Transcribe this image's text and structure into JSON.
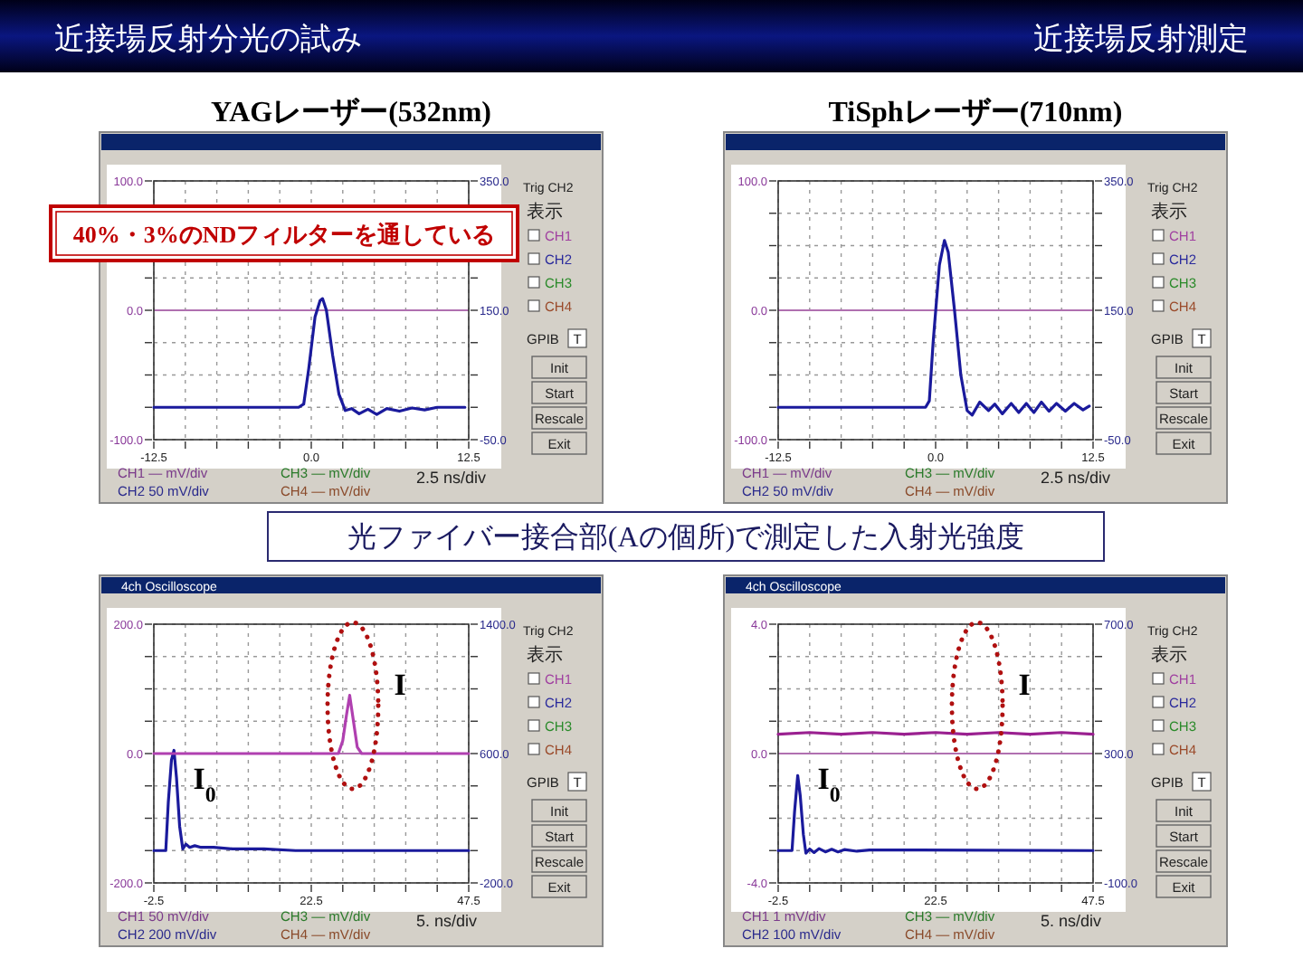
{
  "chart_data": [
    {
      "type": "other",
      "title": "近接場反射分光の試み",
      "annotations": [
        "近接場反射測定",
        "光ファイバー接合部(Aの個所)で測定した入射光強度",
        "40%・3%のNDフィルターを通している"
      ]
    },
    {
      "type": "line",
      "title": "YAGレーザー(532nm)",
      "xlim": [
        -12.5,
        12.5
      ],
      "xticks": [
        {
          "value": -12.5,
          "label": "-12.5"
        },
        {
          "value": -10,
          "label": null
        },
        {
          "value": -7.5,
          "label": null
        },
        {
          "value": -5,
          "label": null
        },
        {
          "value": -2.5,
          "label": null
        },
        {
          "value": 0,
          "label": "0.0"
        },
        {
          "value": 2.5,
          "label": null
        },
        {
          "value": 5,
          "label": null
        },
        {
          "value": 7.5,
          "label": null
        },
        {
          "value": 10,
          "label": null
        },
        {
          "value": 12.5,
          "label": "12.5"
        }
      ],
      "ylim": [
        -100,
        100
      ],
      "yticks": [
        {
          "value": -100,
          "label": "-100.0"
        },
        {
          "value": -75,
          "label": null
        },
        {
          "value": -50,
          "label": null
        },
        {
          "value": -25,
          "label": null
        },
        {
          "value": 0,
          "label": "0.0"
        },
        {
          "value": 25,
          "label": null
        },
        {
          "value": 50,
          "label": null
        },
        {
          "value": 75,
          "label": null
        },
        {
          "value": 100,
          "label": "100.0"
        }
      ],
      "y2lim": [
        -50,
        350
      ],
      "y2ticks": [
        {
          "value": -50,
          "label": "-50.0"
        },
        {
          "value": 0,
          "label": null
        },
        {
          "value": 50,
          "label": null
        },
        {
          "value": 100,
          "label": null
        },
        {
          "value": 150,
          "label": "150.0"
        },
        {
          "value": 200,
          "label": null
        },
        {
          "value": 250,
          "label": null
        },
        {
          "value": 300,
          "label": null
        },
        {
          "value": 350,
          "label": "350.0"
        }
      ],
      "grid": true,
      "ref_lines": [
        {
          "axis": "y",
          "value": 0,
          "color": "#b070b0"
        }
      ],
      "series": [
        {
          "color": "#1a1a9c",
          "axis": "y2",
          "x": [
            -12.5,
            -1,
            -0.6,
            -0.2,
            0.3,
            0.7,
            0.9,
            1.2,
            1.7,
            2.2,
            2.7,
            3.2,
            3.8,
            4.5,
            5.2,
            6,
            7,
            8,
            9,
            10,
            12.2
          ],
          "values": [
            0,
            0,
            5,
            60,
            140,
            165,
            168,
            150,
            80,
            20,
            -5,
            -2,
            -10,
            -3,
            -11,
            -2,
            -6,
            -1,
            -4,
            0,
            0
          ]
        }
      ],
      "annotations": [
        "Trig CH2",
        "表示",
        "CH1",
        "CH2",
        "CH3",
        "CH4",
        "GPIB",
        "T",
        "Init",
        "Start",
        "Rescale",
        "Exit",
        "CH1 — mV/div",
        "CH2 50 mV/div",
        "CH3 — mV/div",
        "CH4 — mV/div",
        "2.5 ns/div"
      ]
    },
    {
      "type": "line",
      "title": "TiSphレーザー(710nm)",
      "xlim": [
        -12.5,
        12.5
      ],
      "xticks": [
        {
          "value": -12.5,
          "label": "-12.5"
        },
        {
          "value": -10,
          "label": null
        },
        {
          "value": -7.5,
          "label": null
        },
        {
          "value": -5,
          "label": null
        },
        {
          "value": -2.5,
          "label": null
        },
        {
          "value": 0,
          "label": "0.0"
        },
        {
          "value": 2.5,
          "label": null
        },
        {
          "value": 5,
          "label": null
        },
        {
          "value": 7.5,
          "label": null
        },
        {
          "value": 10,
          "label": null
        },
        {
          "value": 12.5,
          "label": "12.5"
        }
      ],
      "ylim": [
        -100,
        100
      ],
      "yticks": [
        {
          "value": -100,
          "label": "-100.0"
        },
        {
          "value": -75,
          "label": null
        },
        {
          "value": -50,
          "label": null
        },
        {
          "value": -25,
          "label": null
        },
        {
          "value": 0,
          "label": "0.0"
        },
        {
          "value": 25,
          "label": null
        },
        {
          "value": 50,
          "label": null
        },
        {
          "value": 75,
          "label": null
        },
        {
          "value": 100,
          "label": "100.0"
        }
      ],
      "y2lim": [
        -50,
        350
      ],
      "y2ticks": [
        {
          "value": -50,
          "label": "-50.0"
        },
        {
          "value": 0,
          "label": null
        },
        {
          "value": 50,
          "label": null
        },
        {
          "value": 100,
          "label": null
        },
        {
          "value": 150,
          "label": "150.0"
        },
        {
          "value": 200,
          "label": null
        },
        {
          "value": 250,
          "label": null
        },
        {
          "value": 300,
          "label": null
        },
        {
          "value": 350,
          "label": "350.0"
        }
      ],
      "grid": true,
      "ref_lines": [
        {
          "axis": "y",
          "value": 0,
          "color": "#b070b0"
        }
      ],
      "series": [
        {
          "color": "#1a1a9c",
          "axis": "y2",
          "x": [
            -12.5,
            -0.8,
            -0.5,
            -0.2,
            0.3,
            0.7,
            1,
            1.5,
            2,
            2.5,
            2.9,
            3.5,
            4.2,
            4.7,
            5.3,
            6,
            6.6,
            7.2,
            7.8,
            8.4,
            9,
            9.6,
            10.3,
            11,
            11.7,
            12.2
          ],
          "values": [
            0,
            0,
            10,
            100,
            220,
            258,
            240,
            150,
            50,
            -5,
            -12,
            8,
            -5,
            5,
            -10,
            6,
            -8,
            6,
            -8,
            8,
            -6,
            6,
            -6,
            6,
            -4,
            2
          ]
        }
      ],
      "annotations": [
        "Trig CH2",
        "表示",
        "CH1",
        "CH2",
        "CH3",
        "CH4",
        "GPIB",
        "T",
        "Init",
        "Start",
        "Rescale",
        "Exit",
        "CH1 — mV/div",
        "CH2 50 mV/div",
        "CH3 — mV/div",
        "CH4 — mV/div",
        "2.5 ns/div"
      ]
    },
    {
      "type": "line",
      "subtitle": "4ch Oscilloscope",
      "xlim": [
        -2.5,
        47.5
      ],
      "xticks": [
        {
          "value": -2.5,
          "label": "-2.5"
        },
        {
          "value": 2.5,
          "label": null
        },
        {
          "value": 7.5,
          "label": null
        },
        {
          "value": 12.5,
          "label": null
        },
        {
          "value": 17.5,
          "label": null
        },
        {
          "value": 22.5,
          "label": "22.5"
        },
        {
          "value": 27.5,
          "label": null
        },
        {
          "value": 32.5,
          "label": null
        },
        {
          "value": 37.5,
          "label": null
        },
        {
          "value": 42.5,
          "label": null
        },
        {
          "value": 47.5,
          "label": "47.5"
        }
      ],
      "ylim": [
        -200,
        200
      ],
      "yticks": [
        {
          "value": -200,
          "label": "-200.0"
        },
        {
          "value": -150,
          "label": null
        },
        {
          "value": -100,
          "label": null
        },
        {
          "value": -50,
          "label": null
        },
        {
          "value": 0,
          "label": "0.0"
        },
        {
          "value": 50,
          "label": null
        },
        {
          "value": 100,
          "label": null
        },
        {
          "value": 150,
          "label": null
        },
        {
          "value": 200,
          "label": "200.0"
        }
      ],
      "y2lim": [
        -200,
        1400
      ],
      "y2ticks": [
        {
          "value": -200,
          "label": "-200.0"
        },
        {
          "value": 0,
          "label": null
        },
        {
          "value": 200,
          "label": null
        },
        {
          "value": 400,
          "label": null
        },
        {
          "value": 600,
          "label": "600.0"
        },
        {
          "value": 800,
          "label": null
        },
        {
          "value": 1000,
          "label": null
        },
        {
          "value": 1200,
          "label": null
        },
        {
          "value": 1400,
          "label": "1400.0"
        }
      ],
      "grid": true,
      "ref_lines": [
        {
          "axis": "y",
          "value": 0,
          "color": "#b070b0"
        }
      ],
      "series": [
        {
          "color": "#1a1a9c",
          "axis": "y2",
          "x": [
            -2.5,
            -0.6,
            -0.2,
            0.3,
            0.7,
            1.1,
            1.6,
            2.1,
            2.6,
            3.2,
            4,
            5,
            7,
            10,
            15,
            20,
            30,
            47.5
          ],
          "values": [
            0,
            0,
            300,
            560,
            620,
            450,
            150,
            10,
            40,
            20,
            30,
            20,
            20,
            10,
            10,
            0,
            0,
            0
          ]
        },
        {
          "color": "#b040b0",
          "x": [
            -2.5,
            26.8,
            27.5,
            28.1,
            28.6,
            29.2,
            29.8,
            30.5,
            47.5
          ],
          "values": [
            0,
            0,
            20,
            60,
            90,
            50,
            10,
            0,
            0
          ]
        }
      ],
      "annotations": [
        "Trig CH2",
        "表示",
        "CH1",
        "CH2",
        "CH3",
        "CH4",
        "GPIB",
        "T",
        "Init",
        "Start",
        "Rescale",
        "Exit",
        "CH1 50 mV/div",
        "CH2 200 mV/div",
        "CH3 — mV/div",
        "CH4 — mV/div",
        "5. ns/div",
        "I",
        "I$_{0}$"
      ]
    },
    {
      "type": "line",
      "subtitle": "4ch Oscilloscope",
      "xlim": [
        -2.5,
        47.5
      ],
      "xticks": [
        {
          "value": -2.5,
          "label": "-2.5"
        },
        {
          "value": 2.5,
          "label": null
        },
        {
          "value": 7.5,
          "label": null
        },
        {
          "value": 12.5,
          "label": null
        },
        {
          "value": 17.5,
          "label": null
        },
        {
          "value": 22.5,
          "label": "22.5"
        },
        {
          "value": 27.5,
          "label": null
        },
        {
          "value": 32.5,
          "label": null
        },
        {
          "value": 37.5,
          "label": null
        },
        {
          "value": 42.5,
          "label": null
        },
        {
          "value": 47.5,
          "label": "47.5"
        }
      ],
      "ylim": [
        -4,
        4
      ],
      "yticks": [
        {
          "value": -4,
          "label": "-4.0"
        },
        {
          "value": -3,
          "label": null
        },
        {
          "value": -2,
          "label": null
        },
        {
          "value": -1,
          "label": null
        },
        {
          "value": 0,
          "label": "0.0"
        },
        {
          "value": 1,
          "label": null
        },
        {
          "value": 2,
          "label": null
        },
        {
          "value": 3,
          "label": null
        },
        {
          "value": 4,
          "label": "4.0"
        }
      ],
      "y2lim": [
        -100,
        700
      ],
      "y2ticks": [
        {
          "value": -100,
          "label": "-100.0"
        },
        {
          "value": 0,
          "label": null
        },
        {
          "value": 100,
          "label": null
        },
        {
          "value": 200,
          "label": null
        },
        {
          "value": 300,
          "label": "300.0"
        },
        {
          "value": 400,
          "label": null
        },
        {
          "value": 500,
          "label": null
        },
        {
          "value": 600,
          "label": null
        },
        {
          "value": 700,
          "label": "700.0"
        }
      ],
      "grid": true,
      "ref_lines": [
        {
          "axis": "y",
          "value": 0,
          "color": "#b070b0"
        }
      ],
      "series": [
        {
          "color": "#1a1a9c",
          "axis": "y2",
          "x": [
            -2.5,
            -0.3,
            0.1,
            0.6,
            1,
            1.5,
            1.9,
            2.5,
            3.2,
            4,
            5,
            6,
            7,
            8,
            10,
            12,
            47.5
          ],
          "values": [
            0,
            0,
            120,
            232,
            170,
            50,
            -8,
            5,
            -6,
            6,
            -4,
            4,
            -4,
            3,
            -2,
            2,
            0
          ]
        },
        {
          "color": "#9a2090",
          "x": [
            -2.5,
            2.5,
            7.5,
            12.5,
            17.5,
            22.5,
            27.5,
            32.5,
            37.5,
            42.5,
            47.5
          ],
          "values": [
            0.6,
            0.65,
            0.6,
            0.65,
            0.6,
            0.65,
            0.6,
            0.65,
            0.6,
            0.65,
            0.6
          ]
        }
      ],
      "annotations": [
        "Trig CH2",
        "表示",
        "CH1",
        "CH2",
        "CH3",
        "CH4",
        "GPIB",
        "T",
        "Init",
        "Start",
        "Rescale",
        "Exit",
        "CH1 1 mV/div",
        "CH2 100 mV/div",
        "CH3 — mV/div",
        "CH4 — mV/div",
        "5. ns/div",
        "I",
        "I$_{0}$"
      ]
    }
  ]
}
